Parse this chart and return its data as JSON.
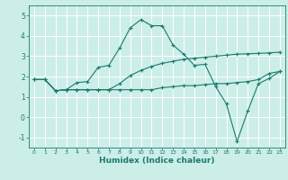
{
  "title": "",
  "xlabel": "Humidex (Indice chaleur)",
  "ylabel": "",
  "bg_color": "#cceee8",
  "grid_color": "#ffffff",
  "line_color": "#1a7a6e",
  "xlim": [
    -0.5,
    23.5
  ],
  "ylim": [
    -1.5,
    5.5
  ],
  "xticks": [
    0,
    1,
    2,
    3,
    4,
    5,
    6,
    7,
    8,
    9,
    10,
    11,
    12,
    13,
    14,
    15,
    16,
    17,
    18,
    19,
    20,
    21,
    22,
    23
  ],
  "yticks": [
    -1,
    0,
    1,
    2,
    3,
    4,
    5
  ],
  "line1_x": [
    0,
    1,
    2,
    3,
    4,
    5,
    6,
    7,
    8,
    9,
    10,
    11,
    12,
    13,
    14,
    15,
    16,
    17,
    18,
    19,
    20,
    21,
    22,
    23
  ],
  "line1_y": [
    1.85,
    1.85,
    1.3,
    1.35,
    1.7,
    1.75,
    2.45,
    2.55,
    3.4,
    4.4,
    4.8,
    4.5,
    4.5,
    3.55,
    3.1,
    2.55,
    2.6,
    1.5,
    0.65,
    -1.2,
    0.3,
    1.65,
    1.9,
    2.25
  ],
  "line2_x": [
    0,
    1,
    2,
    3,
    4,
    5,
    6,
    7,
    8,
    9,
    10,
    11,
    12,
    13,
    14,
    15,
    16,
    17,
    18,
    19,
    20,
    21,
    22,
    23
  ],
  "line2_y": [
    1.85,
    1.85,
    1.3,
    1.35,
    1.35,
    1.35,
    1.35,
    1.35,
    1.35,
    1.35,
    1.35,
    1.35,
    1.45,
    1.5,
    1.55,
    1.55,
    1.6,
    1.65,
    1.65,
    1.7,
    1.75,
    1.85,
    2.15,
    2.25
  ],
  "line3_x": [
    0,
    1,
    2,
    3,
    4,
    5,
    6,
    7,
    8,
    9,
    10,
    11,
    12,
    13,
    14,
    15,
    16,
    17,
    18,
    19,
    20,
    21,
    22,
    23
  ],
  "line3_y": [
    1.85,
    1.85,
    1.3,
    1.35,
    1.35,
    1.35,
    1.35,
    1.35,
    1.65,
    2.05,
    2.3,
    2.5,
    2.65,
    2.75,
    2.85,
    2.9,
    2.95,
    3.0,
    3.05,
    3.1,
    3.12,
    3.14,
    3.16,
    3.2
  ]
}
